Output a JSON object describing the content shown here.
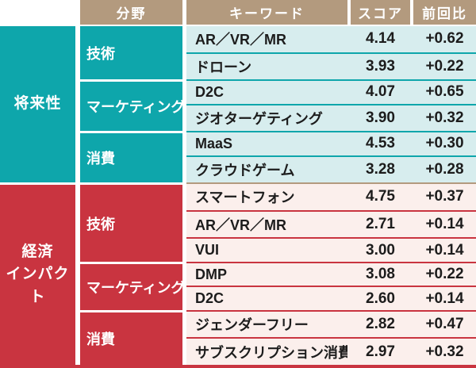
{
  "table": {
    "headers": {
      "field": "分野",
      "keyword": "キーワード",
      "score": "スコア",
      "change": "前回比"
    },
    "colors": {
      "header_bg": "#b39a7e",
      "header_text": "#ffffff",
      "section_divider_line": "#b39a7e",
      "text_dark": "#1c1c1c",
      "background": "#ffffff"
    },
    "sections": [
      {
        "name": "将来性",
        "name_lines": [
          "将来性"
        ],
        "colors": {
          "solid": "#0ea6ab",
          "light": "#d7edee"
        },
        "groups": [
          {
            "field": "技術",
            "rows": [
              {
                "keyword": "AR／VR／MR",
                "score": "4.14",
                "change": "+0.62"
              },
              {
                "keyword": "ドローン",
                "score": "3.93",
                "change": "+0.22"
              }
            ]
          },
          {
            "field": "マーケティング",
            "rows": [
              {
                "keyword": "D2C",
                "score": "4.07",
                "change": "+0.65"
              },
              {
                "keyword": "ジオターゲティング",
                "score": "3.90",
                "change": "+0.32"
              }
            ]
          },
          {
            "field": "消費",
            "rows": [
              {
                "keyword": "MaaS",
                "score": "4.53",
                "change": "+0.30"
              },
              {
                "keyword": "クラウドゲーム",
                "score": "3.28",
                "change": "+0.28"
              }
            ]
          }
        ]
      },
      {
        "name": "経済インパクト",
        "name_lines": [
          "経済",
          "インパクト"
        ],
        "colors": {
          "solid": "#c93440",
          "light": "#fbefec"
        },
        "groups": [
          {
            "field": "技術",
            "rows": [
              {
                "keyword": "スマートフォン",
                "score": "4.75",
                "change": "+0.37"
              },
              {
                "keyword": "AR／VR／MR",
                "score": "2.71",
                "change": "+0.14"
              },
              {
                "keyword": "VUI",
                "score": "3.00",
                "change": "+0.14"
              }
            ]
          },
          {
            "field": "マーケティング",
            "rows": [
              {
                "keyword": "DMP",
                "score": "3.08",
                "change": "+0.22"
              },
              {
                "keyword": "D2C",
                "score": "2.60",
                "change": "+0.14"
              }
            ]
          },
          {
            "field": "消費",
            "rows": [
              {
                "keyword": "ジェンダーフリー",
                "score": "2.82",
                "change": "+0.47"
              },
              {
                "keyword": "サブスクリプション消費",
                "score": "2.97",
                "change": "+0.32"
              }
            ]
          }
        ]
      }
    ]
  },
  "chart_data": {
    "type": "table",
    "column_headers": [
      "分野",
      "キーワード",
      "スコア",
      "前回比"
    ],
    "rows": [
      {
        "category": "将来性",
        "field": "技術",
        "keyword": "AR／VR／MR",
        "score": 4.14,
        "change": "+0.62"
      },
      {
        "category": "将来性",
        "field": "技術",
        "keyword": "ドローン",
        "score": 3.93,
        "change": "+0.22"
      },
      {
        "category": "将来性",
        "field": "マーケティング",
        "keyword": "D2C",
        "score": 4.07,
        "change": "+0.65"
      },
      {
        "category": "将来性",
        "field": "マーケティング",
        "keyword": "ジオターゲティング",
        "score": 3.9,
        "change": "+0.32"
      },
      {
        "category": "将来性",
        "field": "消費",
        "keyword": "MaaS",
        "score": 4.53,
        "change": "+0.30"
      },
      {
        "category": "将来性",
        "field": "消費",
        "keyword": "クラウドゲーム",
        "score": 3.28,
        "change": "+0.28"
      },
      {
        "category": "経済インパクト",
        "field": "技術",
        "keyword": "スマートフォン",
        "score": 4.75,
        "change": "+0.37"
      },
      {
        "category": "経済インパクト",
        "field": "技術",
        "keyword": "AR／VR／MR",
        "score": 2.71,
        "change": "+0.14"
      },
      {
        "category": "経済インパクト",
        "field": "技術",
        "keyword": "VUI",
        "score": 3.0,
        "change": "+0.14"
      },
      {
        "category": "経済インパクト",
        "field": "マーケティング",
        "keyword": "DMP",
        "score": 3.08,
        "change": "+0.22"
      },
      {
        "category": "経済インパクト",
        "field": "マーケティング",
        "keyword": "D2C",
        "score": 2.6,
        "change": "+0.14"
      },
      {
        "category": "経済インパクト",
        "field": "消費",
        "keyword": "ジェンダーフリー",
        "score": 2.82,
        "change": "+0.47"
      },
      {
        "category": "経済インパクト",
        "field": "消費",
        "keyword": "サブスクリプション消費",
        "score": 2.97,
        "change": "+0.32"
      }
    ]
  }
}
